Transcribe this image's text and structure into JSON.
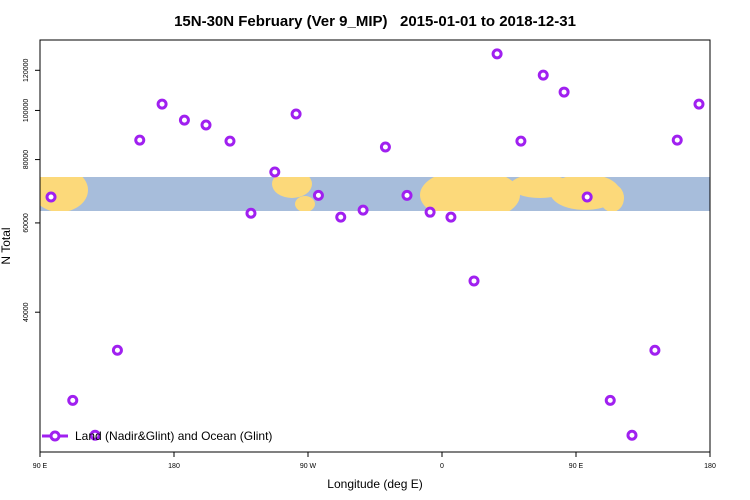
{
  "chart_data": {
    "type": "scatter",
    "title": "15N-30N February (Ver 9_MIP)   2015-01-01 to 2018-12-31",
    "x_label": "Longitude (deg E)",
    "y_label": "N Total",
    "xlim": [
      90,
      540
    ],
    "xticks": [
      {
        "value": 90,
        "label": "90 E"
      },
      {
        "value": 180,
        "label": "180"
      },
      {
        "value": 270,
        "label": "90 W"
      },
      {
        "value": 360,
        "label": "0"
      },
      {
        "value": 450,
        "label": "90 E"
      },
      {
        "value": 540,
        "label": "180"
      }
    ],
    "ylim": [
      21200,
      137700
    ],
    "y_log": true,
    "yticks": [
      40000,
      60000,
      80000,
      100000,
      120000
    ],
    "legend": "bottom-left",
    "series": [
      {
        "name": "Land (Nadir&Glint) and Ocean (Glint)",
        "color": "#a020f0",
        "x": [
          97.4,
          112,
          127,
          142,
          157,
          172,
          187,
          201.5,
          217.6,
          231.7,
          247.7,
          262,
          277,
          292,
          307,
          322,
          336.5,
          352,
          366,
          381.5,
          397,
          413,
          428,
          442,
          457.5,
          473,
          487.6,
          503,
          518,
          532.6
        ],
        "values": [
          67500,
          26800,
          22880,
          33650,
          87400,
          102900,
          95700,
          93600,
          87000,
          62700,
          75600,
          98400,
          68000,
          61600,
          63600,
          84700,
          68000,
          63000,
          61600,
          46100,
          129300,
          87000,
          117400,
          108700,
          67500,
          26800,
          22880,
          33650,
          87400,
          102900
        ]
      }
    ]
  }
}
